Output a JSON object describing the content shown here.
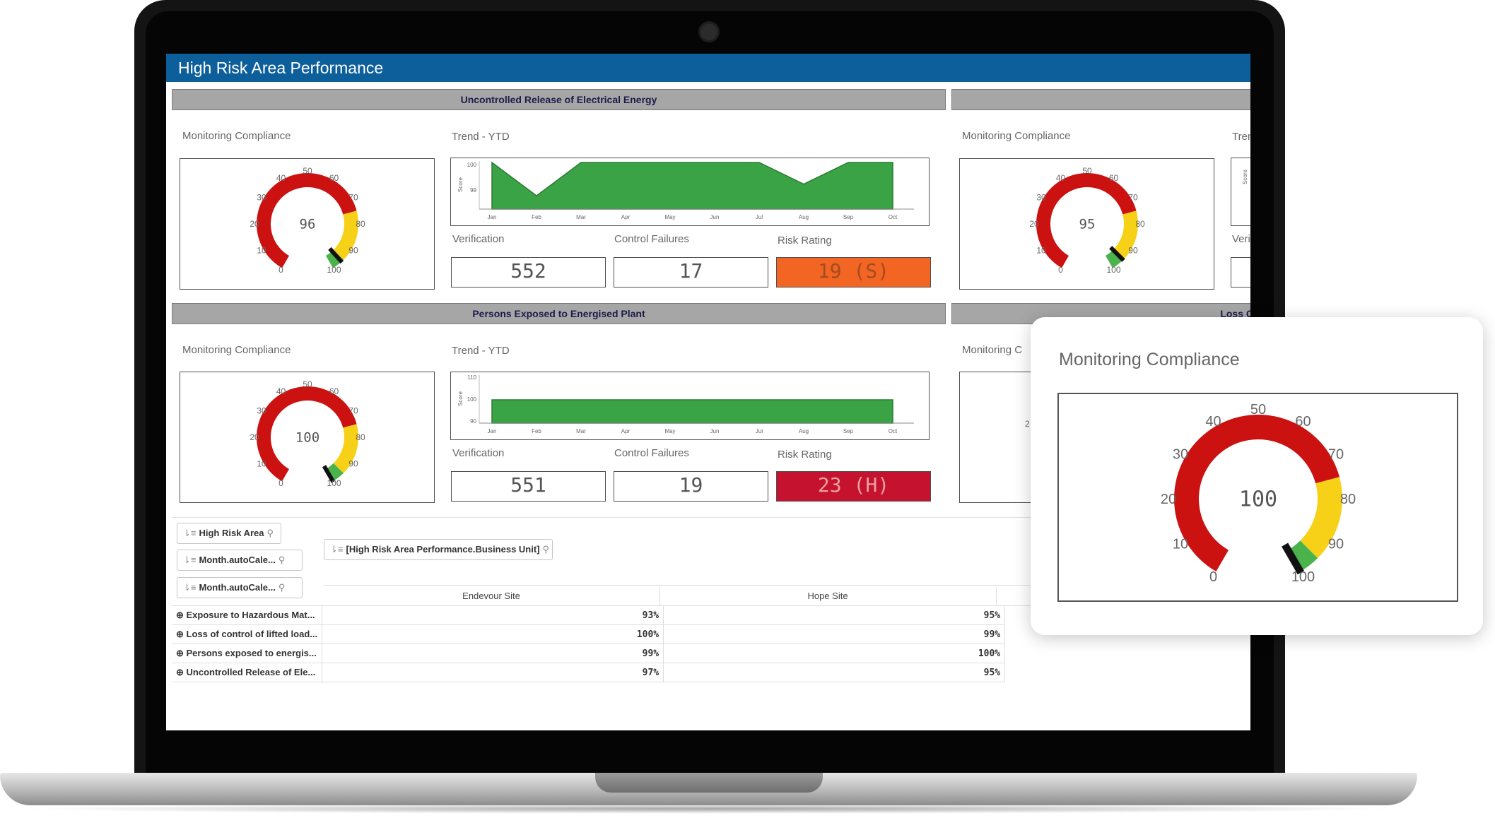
{
  "dashboard": {
    "title": "High Risk Area Performance",
    "sections": [
      {
        "heading": "Uncontrolled Release of Electrical Energy",
        "gauge_title": "Monitoring Compliance",
        "gauge_value": 96,
        "trend_title": "Trend - YTD",
        "trend_ylabel": "Score",
        "trend_ticks": [
          "100",
          "99"
        ],
        "trend_ylim": [
          98.6,
          100
        ],
        "trend_values": [
          100,
          99,
          100,
          100,
          100,
          100,
          100,
          99.35,
          100,
          100
        ],
        "verification_label": "Verification",
        "verification_value": "552",
        "failures_label": "Control Failures",
        "failures_value": "17",
        "risk_label": "Risk Rating",
        "risk_value": "19 (S)",
        "risk_color": "#f26522"
      },
      {
        "heading": "Persons Exposed to Energised Plant",
        "gauge_title": "Monitoring Compliance",
        "gauge_value": 100,
        "trend_title": "Trend - YTD",
        "trend_ylabel": "Score",
        "trend_ticks": [
          "110",
          "100",
          "90"
        ],
        "trend_ylim": [
          90,
          110
        ],
        "trend_values": [
          100,
          100,
          100,
          100,
          100,
          100,
          100,
          100,
          100,
          100
        ],
        "verification_label": "Verification",
        "verification_value": "551",
        "failures_label": "Control Failures",
        "failures_value": "19",
        "risk_label": "Risk Rating",
        "risk_value": "23 (H)",
        "risk_color": "#c4122f"
      }
    ],
    "right_column": {
      "gauge_title": "Monitoring Compliance",
      "gauge_value": 95,
      "trend_title_partial": "Tren",
      "verification_partial": "Veri",
      "score_partial": "Score",
      "heading2_partial": "Loss C",
      "gauge_title2_partial": "Monitoring C",
      "tick_partial": "2"
    },
    "months": [
      "Jan",
      "Feb",
      "Mar",
      "Apr",
      "May",
      "Jun",
      "Jul",
      "Aug",
      "Sep",
      "Oct"
    ],
    "gauge_ticks": [
      "0",
      "10",
      "20",
      "30",
      "40",
      "50",
      "60",
      "70",
      "80",
      "90",
      "100"
    ],
    "filters": {
      "chip1": "High Risk Area",
      "chip2": "Month.autoCale...",
      "chip3": "Month.autoCale...",
      "dimension_chip": "[High Risk Area Performance.Business Unit]"
    },
    "pivot": {
      "columns": [
        "Endevour Site",
        "Hope Site"
      ],
      "rows": [
        {
          "label": "Exposure to Hazardous Mat...",
          "values": [
            "93%",
            "95%"
          ]
        },
        {
          "label": "Loss of control of lifted load...",
          "values": [
            "100%",
            "99%"
          ]
        },
        {
          "label": "Persons exposed to energis...",
          "values": [
            "99%",
            "100%"
          ]
        },
        {
          "label": "Uncontrolled Release of Ele...",
          "values": [
            "97%",
            "95%"
          ]
        }
      ]
    }
  },
  "overlay": {
    "title": "Monitoring Compliance",
    "gauge_value": 100
  },
  "colors": {
    "title_bar": "#0d5f9c",
    "gauge_red": "#cc1111",
    "gauge_yellow": "#f7d117",
    "gauge_green": "#4bb34b",
    "trend_green": "#3aa346"
  }
}
